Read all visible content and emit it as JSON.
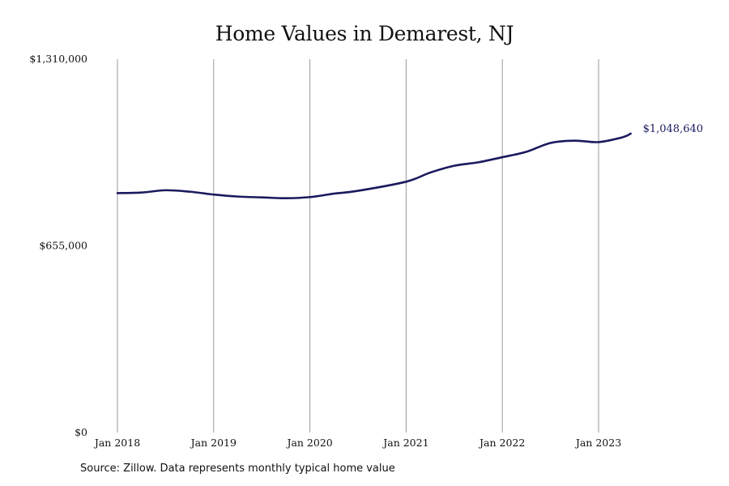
{
  "chart_data": {
    "type": "line",
    "title": "Home Values in Demarest, NJ",
    "xlabel": "",
    "ylabel": "",
    "ylim": [
      0,
      1310000
    ],
    "yticks": [
      {
        "value": 0,
        "label": "$0"
      },
      {
        "value": 655000,
        "label": "$655,000"
      },
      {
        "value": 1310000,
        "label": "$1,310,000"
      }
    ],
    "xticks": [
      {
        "value": "2018-01",
        "label": "Jan 2018"
      },
      {
        "value": "2019-01",
        "label": "Jan 2019"
      },
      {
        "value": "2020-01",
        "label": "Jan 2020"
      },
      {
        "value": "2021-01",
        "label": "Jan 2021"
      },
      {
        "value": "2022-01",
        "label": "Jan 2022"
      },
      {
        "value": "2023-01",
        "label": "Jan 2023"
      }
    ],
    "xlim": [
      "2018-01",
      "2023-12"
    ],
    "grid": "vertical",
    "line_color": "#1a1a5e",
    "series": [
      {
        "x": [
          "2018-01",
          "2018-04",
          "2018-07",
          "2018-10",
          "2019-01",
          "2019-04",
          "2019-07",
          "2019-10",
          "2020-01",
          "2020-04",
          "2020-07",
          "2021-01",
          "2021-04",
          "2021-07",
          "2021-10",
          "2022-01",
          "2022-04",
          "2022-07",
          "2022-10",
          "2023-01",
          "2023-04",
          "2023-05"
        ],
        "values": [
          840000,
          842000,
          850000,
          845000,
          835000,
          828000,
          825000,
          822000,
          826000,
          838000,
          848000,
          880000,
          912000,
          936000,
          948000,
          966000,
          985000,
          1016000,
          1024000,
          1019000,
          1036000,
          1048640
        ]
      }
    ],
    "end_label": "$1,048,640",
    "source": "Source: Zillow. Data represents monthly typical home value"
  }
}
